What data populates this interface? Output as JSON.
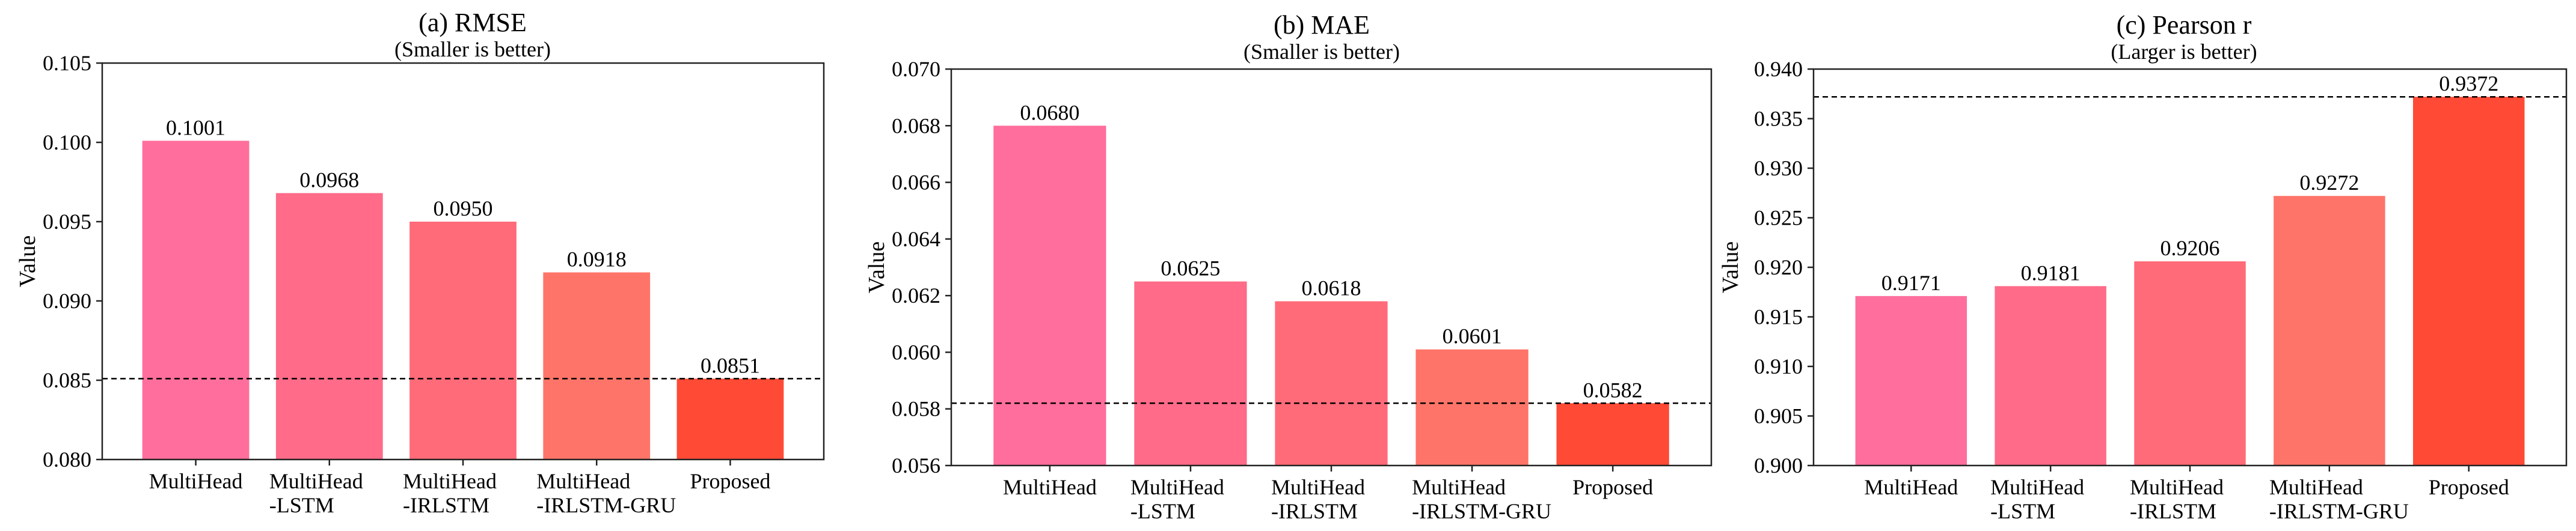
{
  "chart_data": [
    {
      "type": "bar",
      "title": "(a) RMSE",
      "subtitle": "(Smaller is better)",
      "ylabel": "Value",
      "xlabel": "",
      "ylim": [
        0.08,
        0.105
      ],
      "yticks": [
        "0.080",
        "0.085",
        "0.090",
        "0.095",
        "0.100",
        "0.105"
      ],
      "categories": [
        [
          "MultiHead"
        ],
        [
          "MultiHead",
          "-LSTM"
        ],
        [
          "MultiHead",
          "-IRLSTM"
        ],
        [
          "MultiHead",
          "-IRLSTM-GRU"
        ],
        [
          "Proposed"
        ]
      ],
      "values": [
        0.1001,
        0.0968,
        0.095,
        0.0918,
        0.0851
      ],
      "labels": [
        "0.1001",
        "0.0968",
        "0.0950",
        "0.0918",
        "0.0851"
      ],
      "colors": [
        "#ff6e9c",
        "#ff6b88",
        "#ff6b78",
        "#ff7468",
        "#ff4a35"
      ],
      "reference_line": 0.0851,
      "grid": false
    },
    {
      "type": "bar",
      "title": "(b) MAE",
      "subtitle": "(Smaller is better)",
      "ylabel": "Value",
      "xlabel": "",
      "ylim": [
        0.056,
        0.07
      ],
      "yticks": [
        "0.056",
        "0.058",
        "0.060",
        "0.062",
        "0.064",
        "0.066",
        "0.068",
        "0.070"
      ],
      "categories": [
        [
          "MultiHead"
        ],
        [
          "MultiHead",
          "-LSTM"
        ],
        [
          "MultiHead",
          "-IRLSTM"
        ],
        [
          "MultiHead",
          "-IRLSTM-GRU"
        ],
        [
          "Proposed"
        ]
      ],
      "values": [
        0.068,
        0.0625,
        0.0618,
        0.0601,
        0.0582
      ],
      "labels": [
        "0.0680",
        "0.0625",
        "0.0618",
        "0.0601",
        "0.0582"
      ],
      "colors": [
        "#ff6e9c",
        "#ff6b88",
        "#ff6b78",
        "#ff7468",
        "#ff4a35"
      ],
      "reference_line": 0.0582,
      "grid": false
    },
    {
      "type": "bar",
      "title": "(c) Pearson r",
      "subtitle": "(Larger is better)",
      "ylabel": "Value",
      "xlabel": "",
      "ylim": [
        0.9,
        0.94
      ],
      "yticks": [
        "0.900",
        "0.905",
        "0.910",
        "0.915",
        "0.920",
        "0.925",
        "0.930",
        "0.935",
        "0.940"
      ],
      "categories": [
        [
          "MultiHead"
        ],
        [
          "MultiHead",
          "-LSTM"
        ],
        [
          "MultiHead",
          "-IRLSTM"
        ],
        [
          "MultiHead",
          "-IRLSTM-GRU"
        ],
        [
          "Proposed"
        ]
      ],
      "values": [
        0.9171,
        0.9181,
        0.9206,
        0.9272,
        0.9372
      ],
      "labels": [
        "0.9171",
        "0.9181",
        "0.9206",
        "0.9272",
        "0.9372"
      ],
      "colors": [
        "#ff6e9c",
        "#ff6b88",
        "#ff6b78",
        "#ff7468",
        "#ff4a35"
      ],
      "reference_line": 0.9372,
      "grid": false
    }
  ]
}
